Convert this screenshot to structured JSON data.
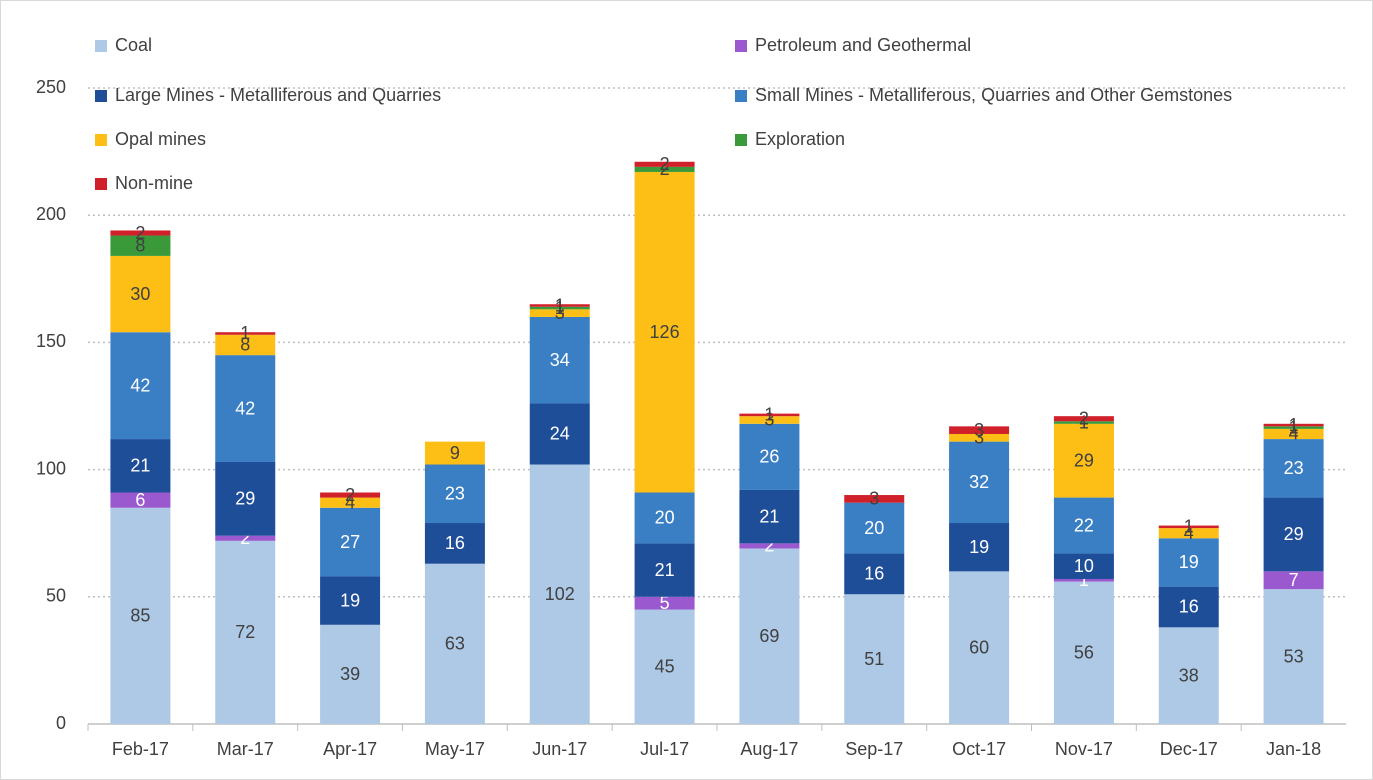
{
  "chart_data": {
    "type": "stacked_bar",
    "categories": [
      "Feb-17",
      "Mar-17",
      "Apr-17",
      "May-17",
      "Jun-17",
      "Jul-17",
      "Aug-17",
      "Sep-17",
      "Oct-17",
      "Nov-17",
      "Dec-17",
      "Jan-18"
    ],
    "series": [
      {
        "name": "Coal",
        "color": "#adc9e6",
        "label_color": "#404040",
        "values": [
          85,
          72,
          39,
          63,
          102,
          45,
          69,
          51,
          60,
          56,
          38,
          53
        ]
      },
      {
        "name": "Petroleum and Geothermal",
        "color": "#9b59d0",
        "label_color": "#ffffff",
        "values": [
          6,
          2,
          null,
          null,
          null,
          5,
          2,
          null,
          null,
          1,
          null,
          7
        ]
      },
      {
        "name": "Large Mines - Metalliferous and Quarries",
        "color": "#1f4e99",
        "label_color": "#ffffff",
        "values": [
          21,
          29,
          19,
          16,
          24,
          21,
          21,
          16,
          19,
          10,
          16,
          29
        ]
      },
      {
        "name": "Small Mines - Metalliferous, Quarries and Other Gemstones",
        "color": "#3a7fc4",
        "label_color": "#ffffff",
        "values": [
          42,
          42,
          27,
          23,
          34,
          20,
          26,
          20,
          32,
          22,
          19,
          23
        ]
      },
      {
        "name": "Opal mines",
        "color": "#fdbf16",
        "label_color": "#404040",
        "values": [
          30,
          8,
          4,
          9,
          3,
          126,
          3,
          null,
          3,
          29,
          4,
          4
        ]
      },
      {
        "name": "Exploration",
        "color": "#3a9a3a",
        "label_color": "#404040",
        "values": [
          8,
          null,
          null,
          null,
          1,
          2,
          null,
          null,
          null,
          1,
          null,
          1
        ]
      },
      {
        "name": "Non-mine",
        "color": "#d0202a",
        "label_color": "#404040",
        "values": [
          2,
          1,
          2,
          null,
          1,
          2,
          1,
          3,
          3,
          2,
          1,
          1
        ]
      }
    ],
    "ylim": [
      0,
      250
    ],
    "yticks": [
      0,
      50,
      100,
      150,
      200,
      250
    ],
    "grid": true,
    "legend": "top"
  }
}
